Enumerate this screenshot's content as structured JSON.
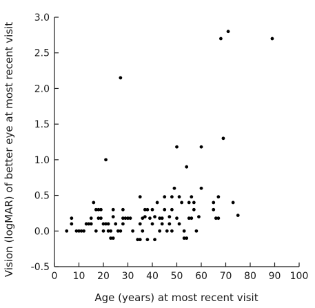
{
  "chart_data": {
    "type": "scatter",
    "xlabel": "Age (years) at most recent visit",
    "ylabel": "Vision (logMAR) of better eye at most recent visit",
    "xlim": [
      0,
      100
    ],
    "ylim": [
      -0.5,
      3.0
    ],
    "x_ticks": [
      "0",
      "10",
      "20",
      "30",
      "40",
      "50",
      "60",
      "70",
      "80",
      "90",
      "100"
    ],
    "y_ticks": [
      "-0.5",
      "0.0",
      "0.5",
      "1.0",
      "1.5",
      "2.0",
      "2.5",
      "3.0"
    ],
    "grid": false,
    "marker_color": "#000000",
    "points": [
      [
        5,
        0.0
      ],
      [
        7,
        0.1
      ],
      [
        7,
        0.18
      ],
      [
        9,
        0.0
      ],
      [
        10,
        0.0
      ],
      [
        11,
        0.0
      ],
      [
        12,
        0.0
      ],
      [
        13,
        0.1
      ],
      [
        14,
        0.1
      ],
      [
        15,
        0.1
      ],
      [
        15,
        0.18
      ],
      [
        16,
        0.4
      ],
      [
        17,
        0.3
      ],
      [
        17,
        0.0
      ],
      [
        18,
        0.3
      ],
      [
        18,
        0.18
      ],
      [
        19,
        0.3
      ],
      [
        19,
        0.18
      ],
      [
        20,
        0.1
      ],
      [
        20,
        0.0
      ],
      [
        21,
        1.0
      ],
      [
        21,
        0.1
      ],
      [
        22,
        0.1
      ],
      [
        22,
        0.0
      ],
      [
        23,
        0.0
      ],
      [
        23,
        -0.1
      ],
      [
        24,
        -0.1
      ],
      [
        24,
        0.2
      ],
      [
        24,
        0.3
      ],
      [
        25,
        0.1
      ],
      [
        26,
        0.0
      ],
      [
        27,
        2.15
      ],
      [
        27,
        0.0
      ],
      [
        28,
        0.1
      ],
      [
        28,
        0.3
      ],
      [
        28,
        0.18
      ],
      [
        29,
        0.18
      ],
      [
        30,
        0.18
      ],
      [
        31,
        0.18
      ],
      [
        32,
        0.0
      ],
      [
        34,
        -0.12
      ],
      [
        35,
        -0.12
      ],
      [
        35,
        0.48
      ],
      [
        35,
        0.1
      ],
      [
        36,
        0.0
      ],
      [
        36,
        0.18
      ],
      [
        37,
        0.2
      ],
      [
        37,
        0.3
      ],
      [
        38,
        0.3
      ],
      [
        38,
        -0.12
      ],
      [
        39,
        0.18
      ],
      [
        40,
        0.3
      ],
      [
        40,
        0.1
      ],
      [
        41,
        -0.12
      ],
      [
        41,
        0.2
      ],
      [
        42,
        0.4
      ],
      [
        43,
        0.18
      ],
      [
        43,
        0.0
      ],
      [
        44,
        0.1
      ],
      [
        44,
        0.18
      ],
      [
        45,
        0.48
      ],
      [
        45,
        0.3
      ],
      [
        46,
        0.0
      ],
      [
        47,
        0.1
      ],
      [
        47,
        0.2
      ],
      [
        48,
        0.48
      ],
      [
        48,
        0.3
      ],
      [
        48,
        0.0
      ],
      [
        49,
        0.6
      ],
      [
        50,
        1.18
      ],
      [
        50,
        0.18
      ],
      [
        51,
        0.1
      ],
      [
        51,
        0.48
      ],
      [
        52,
        0.4
      ],
      [
        53,
        0.0
      ],
      [
        53,
        -0.1
      ],
      [
        54,
        0.9
      ],
      [
        54,
        -0.1
      ],
      [
        55,
        0.18
      ],
      [
        55,
        0.4
      ],
      [
        56,
        0.18
      ],
      [
        56,
        0.48
      ],
      [
        57,
        0.3
      ],
      [
        57,
        0.4
      ],
      [
        58,
        0.0
      ],
      [
        59,
        0.2
      ],
      [
        60,
        1.18
      ],
      [
        60,
        0.6
      ],
      [
        65,
        0.4
      ],
      [
        65,
        0.3
      ],
      [
        66,
        0.18
      ],
      [
        67,
        0.48
      ],
      [
        67,
        0.18
      ],
      [
        68,
        2.7
      ],
      [
        69,
        1.3
      ],
      [
        71,
        2.8
      ],
      [
        73,
        0.4
      ],
      [
        75,
        0.22
      ],
      [
        89,
        2.7
      ]
    ]
  }
}
